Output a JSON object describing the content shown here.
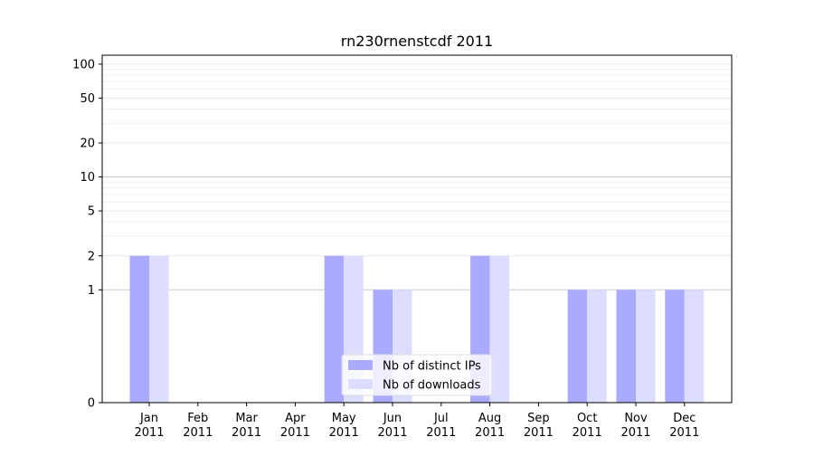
{
  "chart_data": {
    "type": "bar",
    "title": "rn230rnenstcdf 2011",
    "categories": [
      "Jan\n2011",
      "Feb\n2011",
      "Mar\n2011",
      "Apr\n2011",
      "May\n2011",
      "Jun\n2011",
      "Jul\n2011",
      "Aug\n2011",
      "Sep\n2011",
      "Oct\n2011",
      "Nov\n2011",
      "Dec\n2011"
    ],
    "series": [
      {
        "name": "Nb of distinct IPs",
        "color": "#aaaaff",
        "values": [
          2,
          0,
          0,
          0,
          2,
          1,
          0,
          2,
          0,
          1,
          1,
          1
        ]
      },
      {
        "name": "Nb of downloads",
        "color": "#ddddff",
        "values": [
          2,
          0,
          0,
          0,
          2,
          1,
          0,
          2,
          0,
          1,
          1,
          1
        ]
      }
    ],
    "yscale": "symlog",
    "ylim": [
      0,
      120
    ],
    "yticks": [
      0,
      1,
      2,
      5,
      10,
      20,
      50,
      100
    ],
    "ytick_labels": [
      "0",
      "1",
      "2",
      "5",
      "10",
      "20",
      "50",
      "100"
    ],
    "grid": true,
    "legend_position": "lower center",
    "xlabel": "",
    "ylabel": ""
  }
}
